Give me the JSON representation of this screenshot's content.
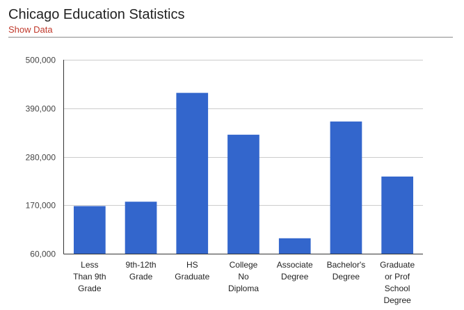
{
  "header": {
    "title": "Chicago Education Statistics",
    "show_data_label": "Show Data"
  },
  "colors": {
    "bar": "#3366cc",
    "grid": "#cccccc",
    "axis": "#333333",
    "link": "#c0392b"
  },
  "chart_data": {
    "type": "bar",
    "title": "Chicago Education Statistics",
    "xlabel": "",
    "ylabel": "",
    "ylim": [
      60000,
      500000
    ],
    "yticks": [
      60000,
      170000,
      280000,
      390000,
      500000
    ],
    "ytick_labels": [
      "60,000",
      "170,000",
      "280,000",
      "390,000",
      "500,000"
    ],
    "grid": true,
    "legend": "none",
    "categories": [
      [
        "Less",
        "Than 9th",
        "Grade"
      ],
      [
        "9th-12th",
        "Grade"
      ],
      [
        "HS",
        "Graduate"
      ],
      [
        "College",
        "No",
        "Diploma"
      ],
      [
        "Associate",
        "Degree"
      ],
      [
        "Bachelor's",
        "Degree"
      ],
      [
        "Graduate",
        "or Prof",
        "School",
        "Degree"
      ]
    ],
    "values": [
      168000,
      178000,
      425000,
      330000,
      95000,
      360000,
      235000
    ]
  }
}
